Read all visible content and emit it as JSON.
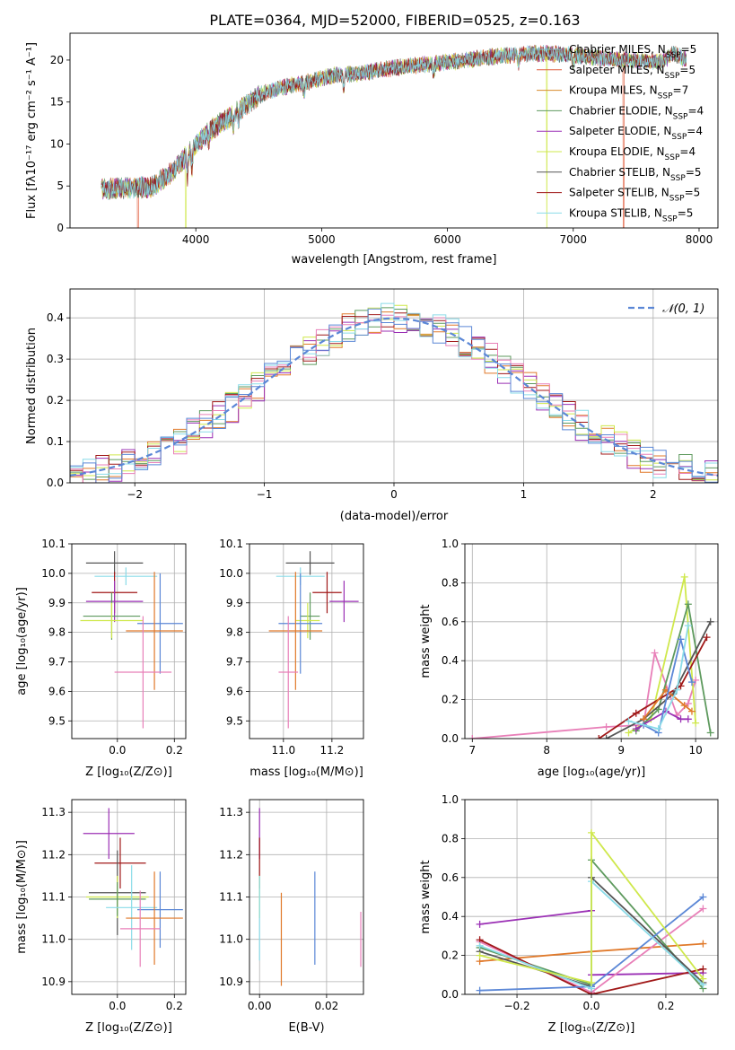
{
  "figure_title": "PLATE=0364, MJD=52000, FIBERID=0525, z=0.163",
  "colors": {
    "Chabrier MILES": "#7ec0c7",
    "Salpeter MILES": "#e05a3a",
    "Kroupa MILES": "#d88b2c",
    "Chabrier ELODIE": "#5e9a5e",
    "Salpeter ELODIE": "#9b30b5",
    "Kroupa ELODIE": "#cfe84c",
    "Chabrier STELIB": "#555555",
    "Salpeter STELIB": "#a01818",
    "Kroupa STELIB": "#8adbe8",
    "cornflower": "#5b87d6",
    "pink": "#e87fb8",
    "orange": "#e0792a"
  },
  "chart_data": [
    {
      "id": "spectrum",
      "type": "line",
      "title": "PLATE=0364, MJD=52000, FIBERID=0525, z=0.163",
      "xlabel": "wavelength [Angstrom, rest frame]",
      "ylabel": "Flux [fλ10⁻¹⁷ erg cm⁻² s⁻¹ A⁻¹]",
      "xlim": [
        3000,
        8150
      ],
      "ylim": [
        0,
        23.2
      ],
      "xticks": [
        4000,
        5000,
        6000,
        7000,
        8000
      ],
      "yticks": [
        0,
        5,
        10,
        15,
        20
      ],
      "grid": false,
      "legend": "top-right",
      "series": [
        {
          "name": "Chabrier MILES, N",
          "sub": "SSP",
          "suffix": "=5"
        },
        {
          "name": "Salpeter MILES, N",
          "sub": "SSP",
          "suffix": "=5"
        },
        {
          "name": "Kroupa MILES, N",
          "sub": "SSP",
          "suffix": "=7"
        },
        {
          "name": "Chabrier ELODIE, N",
          "sub": "SSP",
          "suffix": "=4"
        },
        {
          "name": "Salpeter ELODIE, N",
          "sub": "SSP",
          "suffix": "=4"
        },
        {
          "name": "Kroupa ELODIE, N",
          "sub": "SSP",
          "suffix": "=4"
        },
        {
          "name": "Chabrier STELIB, N",
          "sub": "SSP",
          "suffix": "=5"
        },
        {
          "name": "Salpeter STELIB, N",
          "sub": "SSP",
          "suffix": "=5"
        },
        {
          "name": "Kroupa STELIB, N",
          "sub": "SSP",
          "suffix": "=5"
        }
      ],
      "continuum": {
        "x": [
          3250,
          3450,
          3650,
          3800,
          3950,
          4100,
          4300,
          4500,
          4700,
          4900,
          5100,
          5300,
          5500,
          5700,
          5900,
          6100,
          6300,
          6500,
          6700,
          6900,
          7100,
          7300,
          7500,
          7700,
          7800,
          7900
        ],
        "y": [
          4.6,
          4.8,
          4.9,
          6.5,
          9.0,
          11.5,
          13.5,
          15.8,
          16.8,
          17.4,
          18.2,
          18.4,
          18.9,
          19.3,
          19.6,
          19.9,
          20.3,
          20.6,
          20.8,
          20.7,
          20.4,
          20.1,
          19.9,
          19.8,
          20.8,
          20.0
        ]
      },
      "drops": [
        {
          "x": 3540,
          "series": "Salpeter MILES"
        },
        {
          "x": 3920,
          "series": "Kroupa ELODIE"
        },
        {
          "x": 6790,
          "series": "Kroupa ELODIE"
        },
        {
          "x": 7400,
          "series": "Salpeter MILES"
        }
      ]
    },
    {
      "id": "residuals",
      "type": "histogram",
      "xlabel": "(data-model)/error",
      "ylabel": "Normed distribution",
      "xlim": [
        -2.5,
        2.5
      ],
      "ylim": [
        0,
        0.47
      ],
      "xticks": [
        -2,
        -1,
        0,
        1,
        2
      ],
      "yticks": [
        0.0,
        0.1,
        0.2,
        0.3,
        0.4
      ],
      "grid": true,
      "legend": "top-right",
      "legend_label": "𝒩(0, 1)",
      "bin_width": 0.1,
      "normal_curve": {
        "mean": 0,
        "sigma": 1
      }
    },
    {
      "id": "age-vs-Z",
      "type": "errorbar",
      "xlabel": "Z [log₁₀(Z/Z⊙)]",
      "ylabel": "age  [log₁₀(age/yr)]",
      "xlim": [
        -0.16,
        0.24
      ],
      "ylim": [
        9.44,
        10.1
      ],
      "xticks": [
        0.0,
        0.2
      ],
      "yticks": [
        9.5,
        9.6,
        9.7,
        9.8,
        9.9,
        10.0,
        10.1
      ],
      "grid": true,
      "points": [
        {
          "x": -0.01,
          "y": 10.035,
          "xe": 0.1,
          "ye": 0.04,
          "c": "#555555"
        },
        {
          "x": 0.03,
          "y": 9.99,
          "xe": 0.11,
          "ye": 0.03,
          "c": "#8adbe8"
        },
        {
          "x": -0.01,
          "y": 9.935,
          "xe": 0.08,
          "ye": 0.07,
          "c": "#a01818"
        },
        {
          "x": -0.01,
          "y": 9.905,
          "xe": 0.1,
          "ye": 0.07,
          "c": "#9b30b5"
        },
        {
          "x": -0.02,
          "y": 9.855,
          "xe": 0.1,
          "ye": 0.08,
          "c": "#5e9a5e"
        },
        {
          "x": -0.02,
          "y": 9.84,
          "xe": 0.11,
          "ye": 0.06,
          "c": "#cfe84c"
        },
        {
          "x": 0.15,
          "y": 9.83,
          "xe": 0.08,
          "ye": 0.17,
          "c": "#5b87d6"
        },
        {
          "x": 0.13,
          "y": 9.805,
          "xe": 0.1,
          "ye": 0.2,
          "c": "#e0792a"
        },
        {
          "x": 0.09,
          "y": 9.665,
          "xe": 0.1,
          "ye": 0.19,
          "c": "#e87fb8"
        }
      ]
    },
    {
      "id": "age-vs-mass",
      "type": "errorbar",
      "xlabel": "mass [log₁₀(M/M⊙)]",
      "ylabel": "",
      "xlim": [
        10.86,
        11.33
      ],
      "ylim": [
        9.44,
        10.1
      ],
      "xticks": [
        11.0,
        11.2
      ],
      "yticks": [
        9.5,
        9.6,
        9.7,
        9.8,
        9.9,
        10.0,
        10.1
      ],
      "grid": true,
      "points": [
        {
          "x": 11.11,
          "y": 10.035,
          "xe": 0.1,
          "ye": 0.04,
          "c": "#555555"
        },
        {
          "x": 11.07,
          "y": 9.99,
          "xe": 0.1,
          "ye": 0.03,
          "c": "#8adbe8"
        },
        {
          "x": 11.18,
          "y": 9.935,
          "xe": 0.06,
          "ye": 0.07,
          "c": "#a01818"
        },
        {
          "x": 11.25,
          "y": 9.905,
          "xe": 0.06,
          "ye": 0.07,
          "c": "#9b30b5"
        },
        {
          "x": 11.11,
          "y": 9.855,
          "xe": 0.04,
          "ye": 0.08,
          "c": "#5e9a5e"
        },
        {
          "x": 11.1,
          "y": 9.84,
          "xe": 0.05,
          "ye": 0.06,
          "c": "#cfe84c"
        },
        {
          "x": 11.07,
          "y": 9.83,
          "xe": 0.09,
          "ye": 0.17,
          "c": "#5b87d6"
        },
        {
          "x": 11.05,
          "y": 9.805,
          "xe": 0.11,
          "ye": 0.2,
          "c": "#e0792a"
        },
        {
          "x": 11.02,
          "y": 9.665,
          "xe": 0.04,
          "ye": 0.19,
          "c": "#e87fb8"
        }
      ]
    },
    {
      "id": "weight-vs-age",
      "type": "line",
      "xlabel": "age  [log₁₀(age/yr)]",
      "ylabel": "mass weight",
      "xlim": [
        6.9,
        10.3
      ],
      "ylim": [
        0,
        1.0
      ],
      "xticks": [
        7,
        8,
        9,
        10
      ],
      "yticks": [
        0.0,
        0.2,
        0.4,
        0.6,
        0.8,
        1.0
      ],
      "grid": true,
      "series": [
        {
          "c": "#e87fb8",
          "x": [
            7.0,
            8.8,
            9.3,
            9.45,
            9.75,
            9.9,
            10.0
          ],
          "y": [
            0.0,
            0.06,
            0.07,
            0.44,
            0.12,
            0.18,
            0.3
          ]
        },
        {
          "c": "#cfe84c",
          "x": [
            9.1,
            9.4,
            9.85,
            10.0
          ],
          "y": [
            0.03,
            0.1,
            0.83,
            0.08
          ]
        },
        {
          "c": "#5e9a5e",
          "x": [
            9.2,
            9.5,
            9.9,
            10.2
          ],
          "y": [
            0.04,
            0.15,
            0.69,
            0.03
          ]
        },
        {
          "c": "#555555",
          "x": [
            8.8,
            9.3,
            9.7,
            10.2
          ],
          "y": [
            0.0,
            0.1,
            0.23,
            0.6
          ]
        },
        {
          "c": "#a01818",
          "x": [
            8.7,
            9.2,
            9.8,
            10.15
          ],
          "y": [
            0.0,
            0.13,
            0.27,
            0.52
          ]
        },
        {
          "c": "#9b30b5",
          "x": [
            9.2,
            9.6,
            9.8,
            9.9
          ],
          "y": [
            0.05,
            0.14,
            0.1,
            0.1
          ]
        },
        {
          "c": "#e0792a",
          "x": [
            9.3,
            9.6,
            9.85,
            9.95
          ],
          "y": [
            0.1,
            0.25,
            0.17,
            0.14
          ]
        },
        {
          "c": "#5b87d6",
          "x": [
            9.3,
            9.5,
            9.8,
            9.95
          ],
          "y": [
            0.07,
            0.03,
            0.51,
            0.29
          ]
        },
        {
          "c": "#8adbe8",
          "x": [
            9.1,
            9.5,
            9.75,
            9.9
          ],
          "y": [
            0.09,
            0.05,
            0.25,
            0.58
          ]
        }
      ]
    },
    {
      "id": "mass-vs-Z",
      "type": "errorbar",
      "xlabel": "Z [log₁₀(Z/Z⊙)]",
      "ylabel": "mass [log₁₀(M/M⊙)]",
      "xlim": [
        -0.16,
        0.24
      ],
      "ylim": [
        10.87,
        11.33
      ],
      "xticks": [
        0.0,
        0.2
      ],
      "yticks": [
        10.9,
        11.0,
        11.1,
        11.2,
        11.3
      ],
      "grid": true,
      "points": [
        {
          "x": -0.03,
          "y": 11.25,
          "xe": 0.09,
          "ye": 0.06,
          "c": "#9b30b5"
        },
        {
          "x": 0.01,
          "y": 11.18,
          "xe": 0.09,
          "ye": 0.06,
          "c": "#a01818"
        },
        {
          "x": 0.0,
          "y": 11.11,
          "xe": 0.1,
          "ye": 0.1,
          "c": "#555555"
        },
        {
          "x": 0.0,
          "y": 11.1,
          "xe": 0.11,
          "ye": 0.05,
          "c": "#cfe84c"
        },
        {
          "x": 0.0,
          "y": 11.095,
          "xe": 0.1,
          "ye": 0.04,
          "c": "#5e9a5e"
        },
        {
          "x": 0.05,
          "y": 11.075,
          "xe": 0.09,
          "ye": 0.1,
          "c": "#8adbe8"
        },
        {
          "x": 0.15,
          "y": 11.07,
          "xe": 0.08,
          "ye": 0.09,
          "c": "#5b87d6"
        },
        {
          "x": 0.13,
          "y": 11.05,
          "xe": 0.1,
          "ye": 0.11,
          "c": "#e0792a"
        },
        {
          "x": 0.08,
          "y": 11.025,
          "xe": 0.07,
          "ye": 0.09,
          "c": "#e87fb8"
        }
      ]
    },
    {
      "id": "mass-vs-ebv",
      "type": "errorbar",
      "xlabel": "E(B-V)",
      "ylabel": "",
      "xlim": [
        -0.003,
        0.031
      ],
      "ylim": [
        10.87,
        11.33
      ],
      "xticks": [
        0.0,
        0.02
      ],
      "yticks": [
        10.9,
        11.0,
        11.1,
        11.2,
        11.3
      ],
      "grid": true,
      "points": [
        {
          "x": 0.0,
          "y": 11.25,
          "xe": 0,
          "ye": 0.06,
          "c": "#9b30b5"
        },
        {
          "x": 0.0,
          "y": 11.18,
          "xe": 0,
          "ye": 0.06,
          "c": "#a01818"
        },
        {
          "x": 0.0,
          "y": 11.1,
          "xe": 0,
          "ye": 0.05,
          "c": "#cfe84c"
        },
        {
          "x": 0.0,
          "y": 11.05,
          "xe": 0,
          "ye": 0.1,
          "c": "#8adbe8"
        },
        {
          "x": 0.0065,
          "y": 11.0,
          "xe": 0,
          "ye": 0.11,
          "c": "#e0792a"
        },
        {
          "x": 0.0165,
          "y": 11.05,
          "xe": 0,
          "ye": 0.11,
          "c": "#5b87d6"
        },
        {
          "x": 0.0302,
          "y": 11.0,
          "xe": 0,
          "ye": 0.065,
          "c": "#e87fb8"
        }
      ]
    },
    {
      "id": "weight-vs-Z",
      "type": "line",
      "xlabel": "Z [log₁₀(Z/Z⊙)]",
      "ylabel": "mass weight",
      "xlim": [
        -0.34,
        0.34
      ],
      "ylim": [
        0,
        1.0
      ],
      "xticks": [
        -0.2,
        0.0,
        0.2
      ],
      "yticks": [
        0.0,
        0.2,
        0.4,
        0.6,
        0.8,
        1.0
      ],
      "grid": true,
      "series": [
        {
          "c": "#9b30b5",
          "x": [
            -0.3,
            0.0,
            0.0,
            0.3
          ],
          "y": [
            0.36,
            0.43,
            0.1,
            0.11
          ]
        },
        {
          "c": "#e0792a",
          "x": [
            -0.3,
            0.0,
            0.3
          ],
          "y": [
            0.17,
            0.22,
            0.26
          ]
        },
        {
          "c": "#e87fb8",
          "x": [
            -0.3,
            0.0,
            0.3
          ],
          "y": [
            0.27,
            0.01,
            0.44
          ]
        },
        {
          "c": "#5e9a5e",
          "x": [
            -0.3,
            0.0,
            0.0,
            0.3
          ],
          "y": [
            0.24,
            0.05,
            0.69,
            0.03
          ]
        },
        {
          "c": "#555555",
          "x": [
            -0.3,
            0.0,
            0.0,
            0.3
          ],
          "y": [
            0.22,
            0.04,
            0.6,
            0.06
          ]
        },
        {
          "c": "#a01818",
          "x": [
            -0.3,
            0.0,
            0.3
          ],
          "y": [
            0.28,
            0.0,
            0.13
          ]
        },
        {
          "c": "#5b87d6",
          "x": [
            -0.3,
            0.0,
            0.3
          ],
          "y": [
            0.02,
            0.04,
            0.5
          ]
        },
        {
          "c": "#8adbe8",
          "x": [
            -0.3,
            0.0,
            0.0,
            0.3
          ],
          "y": [
            0.25,
            0.03,
            0.58,
            0.05
          ]
        },
        {
          "c": "#cfe84c",
          "x": [
            -0.3,
            0.0,
            0.0,
            0.3
          ],
          "y": [
            0.2,
            0.06,
            0.83,
            0.08
          ]
        }
      ]
    }
  ]
}
